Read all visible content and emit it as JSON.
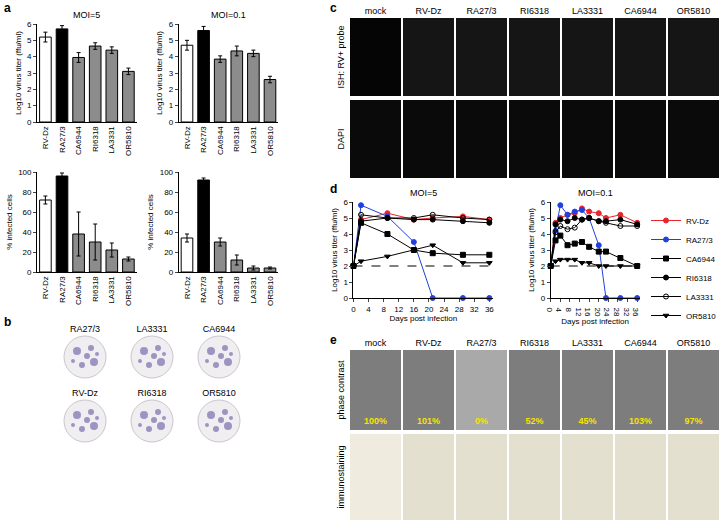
{
  "panel_labels": [
    "a",
    "b",
    "c",
    "d",
    "e"
  ],
  "chart_data": [
    {
      "type": "bar",
      "title": "MOI=5",
      "y_label": "Log10 virus titer (ffu/ml)",
      "categories": [
        "RV-Dz",
        "RA27/3",
        "CA6944",
        "RI6318",
        "LA3331",
        "OR5810"
      ],
      "values": [
        5.2,
        5.7,
        3.95,
        4.65,
        4.4,
        3.1
      ],
      "errors": [
        0.3,
        0.2,
        0.3,
        0.2,
        0.2,
        0.2
      ],
      "colors": [
        "#ffffff",
        "#000000",
        "#8c8c8c",
        "#8c8c8c",
        "#8c8c8c",
        "#8c8c8c"
      ],
      "ylim": [
        0,
        6
      ],
      "yticks": [
        0,
        1,
        2,
        3,
        4,
        5,
        6
      ],
      "grid": false
    },
    {
      "type": "bar",
      "title": "MOI=0.1",
      "y_label": "Log10 virus titer (ffu/ml)",
      "categories": [
        "RV-Dz",
        "RA27/3",
        "CA6944",
        "RI6318",
        "LA3331",
        "OR5810"
      ],
      "values": [
        4.7,
        5.6,
        3.85,
        4.35,
        4.2,
        2.6
      ],
      "errors": [
        0.3,
        0.25,
        0.2,
        0.3,
        0.2,
        0.2
      ],
      "colors": [
        "#ffffff",
        "#000000",
        "#8c8c8c",
        "#8c8c8c",
        "#8c8c8c",
        "#8c8c8c"
      ],
      "ylim": [
        0,
        6
      ],
      "yticks": [
        0,
        1,
        2,
        3,
        4,
        5,
        6
      ],
      "grid": false
    },
    {
      "type": "bar",
      "y_label": "% infected cells",
      "categories": [
        "RV-Dz",
        "RA27/3",
        "CA6944",
        "RI6318",
        "LA3331",
        "OR5810"
      ],
      "values": [
        72,
        96,
        38,
        30,
        22,
        13
      ],
      "errors": [
        4,
        3,
        22,
        18,
        7,
        2
      ],
      "colors": [
        "#ffffff",
        "#000000",
        "#8c8c8c",
        "#8c8c8c",
        "#8c8c8c",
        "#8c8c8c"
      ],
      "ylim": [
        0,
        100
      ],
      "yticks": [
        0,
        20,
        40,
        60,
        80,
        100
      ],
      "grid": false
    },
    {
      "type": "bar",
      "y_label": "% infected cells",
      "categories": [
        "RV-Dz",
        "RA27/3",
        "CA6944",
        "RI6318",
        "LA3331",
        "OR5810"
      ],
      "values": [
        34,
        92,
        30,
        12,
        4,
        4
      ],
      "errors": [
        4,
        2,
        4,
        5,
        2,
        1
      ],
      "colors": [
        "#ffffff",
        "#000000",
        "#8c8c8c",
        "#8c8c8c",
        "#8c8c8c",
        "#8c8c8c"
      ],
      "ylim": [
        0,
        100
      ],
      "yticks": [
        0,
        20,
        40,
        60,
        80,
        100
      ],
      "grid": false
    },
    {
      "type": "line",
      "title": "MOI=5",
      "x_label": "Days post infection",
      "y_label": "Log10 virus titer (ffu/ml)",
      "x": [
        0,
        2,
        9,
        16,
        21,
        29,
        36
      ],
      "series": [
        {
          "name": "RV-Dz",
          "color": "#e8262b",
          "marker": "circle",
          "values": [
            2,
            4.9,
            5.3,
            4.9,
            5.0,
            5.1,
            4.9
          ]
        },
        {
          "name": "RA27/3",
          "color": "#2040e0",
          "marker": "circle",
          "values": [
            2,
            5.8,
            5.1,
            3.5,
            0,
            0,
            0
          ]
        },
        {
          "name": "CA6944",
          "color": "#000000",
          "marker": "square",
          "values": [
            2,
            4.7,
            4.0,
            3.0,
            2.8,
            2.7,
            2.7
          ]
        },
        {
          "name": "RI6318",
          "color": "#000000",
          "marker": "circle",
          "values": [
            2,
            4.8,
            5.0,
            4.9,
            4.9,
            4.8,
            4.7
          ]
        },
        {
          "name": "LA3331",
          "color": "#000000",
          "marker": "circle-open",
          "values": [
            2,
            5.2,
            5.0,
            5.0,
            5.2,
            5.0,
            4.9
          ]
        },
        {
          "name": "OR5810",
          "color": "#000000",
          "marker": "triangle-down",
          "values": [
            2,
            2.3,
            2.6,
            3.0,
            3.3,
            2.2,
            2.2
          ]
        }
      ],
      "xlim": [
        0,
        37
      ],
      "xticks": [
        0,
        4,
        8,
        12,
        16,
        20,
        24,
        28,
        32,
        36
      ],
      "ylim": [
        0,
        6
      ],
      "yticks": [
        0,
        1,
        2,
        3,
        4,
        5,
        6
      ],
      "detection_limit": 2,
      "legend": "right",
      "grid": false
    },
    {
      "type": "line",
      "title": "MOI=0.1",
      "x_label": "Days post infection",
      "y_label": "Log10 virus titer (ffu/ml)",
      "x": [
        0,
        2,
        4,
        7,
        10,
        13,
        16,
        20,
        23,
        29,
        36
      ],
      "series": [
        {
          "name": "RV-Dz",
          "color": "#e8262b",
          "marker": "circle",
          "values": [
            2,
            4.7,
            5.0,
            5.2,
            5.3,
            5.6,
            5.4,
            5.3,
            5.0,
            5.2,
            4.7
          ]
        },
        {
          "name": "RA27/3",
          "color": "#2040e0",
          "marker": "circle",
          "values": [
            2,
            4.2,
            5.8,
            5.2,
            5.4,
            5.5,
            5.0,
            3.3,
            0,
            0,
            0
          ]
        },
        {
          "name": "CA6944",
          "color": "#000000",
          "marker": "square",
          "values": [
            2,
            3.6,
            3.9,
            3.3,
            3.4,
            3.5,
            3.2,
            2.9,
            2.9,
            2.5,
            2.0
          ]
        },
        {
          "name": "RI6318",
          "color": "#000000",
          "marker": "circle",
          "values": [
            2,
            4.6,
            4.9,
            4.8,
            5.0,
            4.9,
            5.0,
            4.8,
            4.8,
            4.9,
            4.6
          ]
        },
        {
          "name": "LA3331",
          "color": "#000000",
          "marker": "circle-open",
          "values": [
            2,
            4.1,
            4.5,
            4.3,
            4.4,
            4.9,
            5.0,
            4.8,
            4.7,
            4.5,
            4.5
          ]
        },
        {
          "name": "OR5810",
          "color": "#000000",
          "marker": "triangle-down",
          "values": [
            2,
            2.3,
            2.4,
            2.4,
            2.4,
            2.2,
            2.2,
            2.0,
            2.0,
            2.0,
            2.0
          ]
        }
      ],
      "xlim": [
        0,
        37
      ],
      "xticks": [
        0,
        4,
        8,
        12,
        16,
        20,
        24,
        28,
        32,
        36
      ],
      "ylim": [
        0,
        6
      ],
      "yticks": [
        0,
        1,
        2,
        3,
        4,
        5,
        6
      ],
      "detection_limit": 2,
      "grid": false
    }
  ],
  "plaques": {
    "labels": [
      "RA27/3",
      "LA3331",
      "CA6944",
      "RV-Dz",
      "RI6318",
      "OR5810"
    ]
  },
  "ish": {
    "columns": [
      "mock",
      "RV-Dz",
      "RA27/3",
      "RI6318",
      "LA3331",
      "CA6944",
      "OR5810"
    ],
    "rows": [
      "ISH: RV+ probe",
      "DAPI"
    ]
  },
  "viability": {
    "columns": [
      "mock",
      "RV-Dz",
      "RA27/3",
      "RI6318",
      "LA3331",
      "CA6944",
      "OR5810"
    ],
    "rows": [
      "phase contrast",
      "immunostaining"
    ],
    "values": [
      100,
      101,
      0,
      52,
      45,
      103,
      97
    ],
    "value_labels": [
      "100%",
      "101%",
      "0%",
      "52%",
      "45%",
      "103%",
      "97%"
    ]
  }
}
